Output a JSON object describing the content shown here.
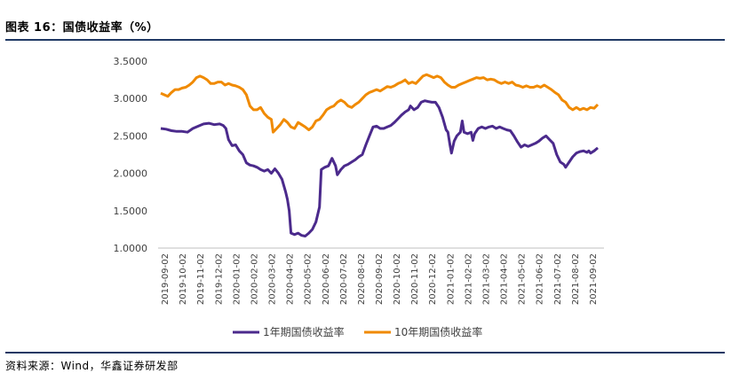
{
  "figure_label": "图表 16：国债收益率（%）",
  "source_note": "资料来源：Wind，华鑫证券研发部",
  "colors": {
    "series1": "#4b2a8c",
    "series2": "#f08a00",
    "rule": "#1f3864",
    "axis": "#bfbfbf"
  },
  "chart_data": {
    "type": "line",
    "title": "国债收益率（%）",
    "xlabel": "",
    "ylabel": "",
    "ylim": [
      1.0,
      3.5
    ],
    "yticks": [
      "1.0000",
      "1.5000",
      "2.0000",
      "2.5000",
      "3.0000",
      "3.5000"
    ],
    "ytick_values": [
      1.0,
      1.5,
      2.0,
      2.5,
      3.0,
      3.5
    ],
    "categories": [
      "2019-09-02",
      "2019-10-02",
      "2019-11-02",
      "2019-12-02",
      "2020-01-02",
      "2020-02-02",
      "2020-03-02",
      "2020-04-02",
      "2020-05-02",
      "2020-06-02",
      "2020-07-02",
      "2020-08-02",
      "2020-09-02",
      "2020-10-02",
      "2020-11-02",
      "2020-12-02",
      "2021-01-02",
      "2021-02-02",
      "2021-03-02",
      "2021-04-02",
      "2021-05-02",
      "2021-06-02",
      "2021-07-02",
      "2021-08-02",
      "2021-09-02"
    ],
    "legend_position": "bottom",
    "series": [
      {
        "name": "1年期国债收益率",
        "color": "#4b2a8c",
        "points": [
          [
            0,
            2.6
          ],
          [
            0.3,
            2.59
          ],
          [
            0.6,
            2.57
          ],
          [
            0.9,
            2.56
          ],
          [
            1.2,
            2.56
          ],
          [
            1.5,
            2.55
          ],
          [
            1.8,
            2.6
          ],
          [
            2.1,
            2.63
          ],
          [
            2.4,
            2.66
          ],
          [
            2.7,
            2.67
          ],
          [
            3.0,
            2.65
          ],
          [
            3.3,
            2.66
          ],
          [
            3.5,
            2.64
          ],
          [
            3.65,
            2.6
          ],
          [
            3.8,
            2.45
          ],
          [
            4.0,
            2.37
          ],
          [
            4.2,
            2.38
          ],
          [
            4.4,
            2.3
          ],
          [
            4.6,
            2.25
          ],
          [
            4.8,
            2.14
          ],
          [
            5.0,
            2.11
          ],
          [
            5.2,
            2.1
          ],
          [
            5.4,
            2.08
          ],
          [
            5.6,
            2.05
          ],
          [
            5.8,
            2.03
          ],
          [
            6.0,
            2.05
          ],
          [
            6.2,
            2.0
          ],
          [
            6.4,
            2.06
          ],
          [
            6.6,
            2.0
          ],
          [
            6.8,
            1.92
          ],
          [
            7.0,
            1.75
          ],
          [
            7.1,
            1.65
          ],
          [
            7.2,
            1.5
          ],
          [
            7.3,
            1.2
          ],
          [
            7.5,
            1.18
          ],
          [
            7.7,
            1.2
          ],
          [
            7.9,
            1.17
          ],
          [
            8.1,
            1.16
          ],
          [
            8.3,
            1.2
          ],
          [
            8.5,
            1.25
          ],
          [
            8.7,
            1.35
          ],
          [
            8.9,
            1.55
          ],
          [
            9.0,
            2.05
          ],
          [
            9.2,
            2.08
          ],
          [
            9.4,
            2.1
          ],
          [
            9.6,
            2.2
          ],
          [
            9.8,
            2.1
          ],
          [
            9.9,
            1.98
          ],
          [
            10.1,
            2.05
          ],
          [
            10.3,
            2.1
          ],
          [
            10.5,
            2.12
          ],
          [
            10.7,
            2.15
          ],
          [
            10.9,
            2.18
          ],
          [
            11.1,
            2.22
          ],
          [
            11.3,
            2.25
          ],
          [
            11.5,
            2.38
          ],
          [
            11.7,
            2.5
          ],
          [
            11.9,
            2.62
          ],
          [
            12.1,
            2.63
          ],
          [
            12.3,
            2.6
          ],
          [
            12.5,
            2.6
          ],
          [
            12.7,
            2.62
          ],
          [
            12.9,
            2.64
          ],
          [
            13.1,
            2.68
          ],
          [
            13.3,
            2.73
          ],
          [
            13.5,
            2.78
          ],
          [
            13.7,
            2.82
          ],
          [
            13.9,
            2.85
          ],
          [
            14.0,
            2.9
          ],
          [
            14.2,
            2.85
          ],
          [
            14.4,
            2.88
          ],
          [
            14.6,
            2.95
          ],
          [
            14.8,
            2.97
          ],
          [
            15.0,
            2.96
          ],
          [
            15.2,
            2.95
          ],
          [
            15.4,
            2.95
          ],
          [
            15.6,
            2.88
          ],
          [
            15.8,
            2.75
          ],
          [
            16.0,
            2.58
          ],
          [
            16.1,
            2.55
          ],
          [
            16.2,
            2.4
          ],
          [
            16.3,
            2.27
          ],
          [
            16.45,
            2.43
          ],
          [
            16.6,
            2.5
          ],
          [
            16.8,
            2.55
          ],
          [
            16.9,
            2.7
          ],
          [
            17.0,
            2.55
          ],
          [
            17.2,
            2.53
          ],
          [
            17.4,
            2.55
          ],
          [
            17.5,
            2.44
          ],
          [
            17.6,
            2.53
          ],
          [
            17.8,
            2.6
          ],
          [
            18.0,
            2.62
          ],
          [
            18.2,
            2.6
          ],
          [
            18.4,
            2.62
          ],
          [
            18.6,
            2.63
          ],
          [
            18.8,
            2.6
          ],
          [
            19.0,
            2.62
          ],
          [
            19.2,
            2.6
          ],
          [
            19.4,
            2.58
          ],
          [
            19.6,
            2.57
          ],
          [
            19.8,
            2.5
          ],
          [
            20.0,
            2.42
          ],
          [
            20.2,
            2.35
          ],
          [
            20.4,
            2.38
          ],
          [
            20.6,
            2.36
          ],
          [
            20.8,
            2.38
          ],
          [
            21.0,
            2.4
          ],
          [
            21.2,
            2.43
          ],
          [
            21.4,
            2.47
          ],
          [
            21.6,
            2.5
          ],
          [
            21.8,
            2.45
          ],
          [
            22.0,
            2.4
          ],
          [
            22.2,
            2.25
          ],
          [
            22.4,
            2.15
          ],
          [
            22.6,
            2.12
          ],
          [
            22.7,
            2.08
          ],
          [
            22.9,
            2.15
          ],
          [
            23.1,
            2.22
          ],
          [
            23.3,
            2.27
          ],
          [
            23.5,
            2.29
          ],
          [
            23.7,
            2.3
          ],
          [
            23.9,
            2.28
          ],
          [
            24.0,
            2.3
          ],
          [
            24.1,
            2.27
          ],
          [
            24.3,
            2.3
          ],
          [
            24.5,
            2.34
          ]
        ]
      },
      {
        "name": "10年期国债收益率",
        "color": "#f08a00",
        "points": [
          [
            0,
            3.07
          ],
          [
            0.2,
            3.05
          ],
          [
            0.4,
            3.03
          ],
          [
            0.6,
            3.08
          ],
          [
            0.8,
            3.12
          ],
          [
            1.0,
            3.12
          ],
          [
            1.2,
            3.14
          ],
          [
            1.4,
            3.15
          ],
          [
            1.6,
            3.18
          ],
          [
            1.8,
            3.22
          ],
          [
            2.0,
            3.28
          ],
          [
            2.2,
            3.3
          ],
          [
            2.4,
            3.28
          ],
          [
            2.6,
            3.25
          ],
          [
            2.8,
            3.2
          ],
          [
            3.0,
            3.2
          ],
          [
            3.2,
            3.22
          ],
          [
            3.4,
            3.22
          ],
          [
            3.6,
            3.18
          ],
          [
            3.8,
            3.2
          ],
          [
            4.0,
            3.18
          ],
          [
            4.2,
            3.17
          ],
          [
            4.4,
            3.15
          ],
          [
            4.6,
            3.12
          ],
          [
            4.8,
            3.05
          ],
          [
            5.0,
            2.9
          ],
          [
            5.2,
            2.85
          ],
          [
            5.4,
            2.85
          ],
          [
            5.6,
            2.88
          ],
          [
            5.8,
            2.8
          ],
          [
            6.0,
            2.75
          ],
          [
            6.2,
            2.72
          ],
          [
            6.3,
            2.55
          ],
          [
            6.5,
            2.6
          ],
          [
            6.7,
            2.65
          ],
          [
            6.9,
            2.72
          ],
          [
            7.1,
            2.68
          ],
          [
            7.3,
            2.62
          ],
          [
            7.5,
            2.6
          ],
          [
            7.7,
            2.68
          ],
          [
            7.9,
            2.65
          ],
          [
            8.1,
            2.62
          ],
          [
            8.3,
            2.58
          ],
          [
            8.5,
            2.62
          ],
          [
            8.7,
            2.7
          ],
          [
            8.9,
            2.72
          ],
          [
            9.1,
            2.78
          ],
          [
            9.3,
            2.85
          ],
          [
            9.5,
            2.88
          ],
          [
            9.7,
            2.9
          ],
          [
            9.9,
            2.95
          ],
          [
            10.1,
            2.98
          ],
          [
            10.3,
            2.95
          ],
          [
            10.5,
            2.9
          ],
          [
            10.7,
            2.88
          ],
          [
            10.9,
            2.92
          ],
          [
            11.1,
            2.95
          ],
          [
            11.3,
            3.0
          ],
          [
            11.5,
            3.05
          ],
          [
            11.7,
            3.08
          ],
          [
            11.9,
            3.1
          ],
          [
            12.1,
            3.12
          ],
          [
            12.3,
            3.1
          ],
          [
            12.5,
            3.13
          ],
          [
            12.7,
            3.16
          ],
          [
            12.9,
            3.15
          ],
          [
            13.1,
            3.17
          ],
          [
            13.3,
            3.2
          ],
          [
            13.5,
            3.22
          ],
          [
            13.7,
            3.25
          ],
          [
            13.9,
            3.2
          ],
          [
            14.1,
            3.22
          ],
          [
            14.3,
            3.2
          ],
          [
            14.5,
            3.25
          ],
          [
            14.7,
            3.3
          ],
          [
            14.9,
            3.32
          ],
          [
            15.1,
            3.3
          ],
          [
            15.3,
            3.28
          ],
          [
            15.5,
            3.3
          ],
          [
            15.7,
            3.28
          ],
          [
            15.9,
            3.22
          ],
          [
            16.1,
            3.18
          ],
          [
            16.3,
            3.15
          ],
          [
            16.5,
            3.15
          ],
          [
            16.7,
            3.18
          ],
          [
            16.9,
            3.2
          ],
          [
            17.1,
            3.22
          ],
          [
            17.3,
            3.24
          ],
          [
            17.5,
            3.26
          ],
          [
            17.7,
            3.28
          ],
          [
            17.9,
            3.27
          ],
          [
            18.1,
            3.28
          ],
          [
            18.3,
            3.25
          ],
          [
            18.5,
            3.26
          ],
          [
            18.7,
            3.25
          ],
          [
            18.9,
            3.22
          ],
          [
            19.1,
            3.2
          ],
          [
            19.3,
            3.22
          ],
          [
            19.5,
            3.2
          ],
          [
            19.7,
            3.22
          ],
          [
            19.9,
            3.18
          ],
          [
            20.1,
            3.17
          ],
          [
            20.3,
            3.15
          ],
          [
            20.5,
            3.17
          ],
          [
            20.7,
            3.15
          ],
          [
            20.9,
            3.15
          ],
          [
            21.1,
            3.17
          ],
          [
            21.3,
            3.15
          ],
          [
            21.5,
            3.18
          ],
          [
            21.7,
            3.15
          ],
          [
            21.9,
            3.12
          ],
          [
            22.1,
            3.08
          ],
          [
            22.3,
            3.05
          ],
          [
            22.5,
            2.98
          ],
          [
            22.7,
            2.95
          ],
          [
            22.9,
            2.88
          ],
          [
            23.1,
            2.85
          ],
          [
            23.3,
            2.88
          ],
          [
            23.5,
            2.85
          ],
          [
            23.7,
            2.87
          ],
          [
            23.9,
            2.85
          ],
          [
            24.1,
            2.88
          ],
          [
            24.3,
            2.87
          ],
          [
            24.5,
            2.92
          ]
        ]
      }
    ]
  }
}
